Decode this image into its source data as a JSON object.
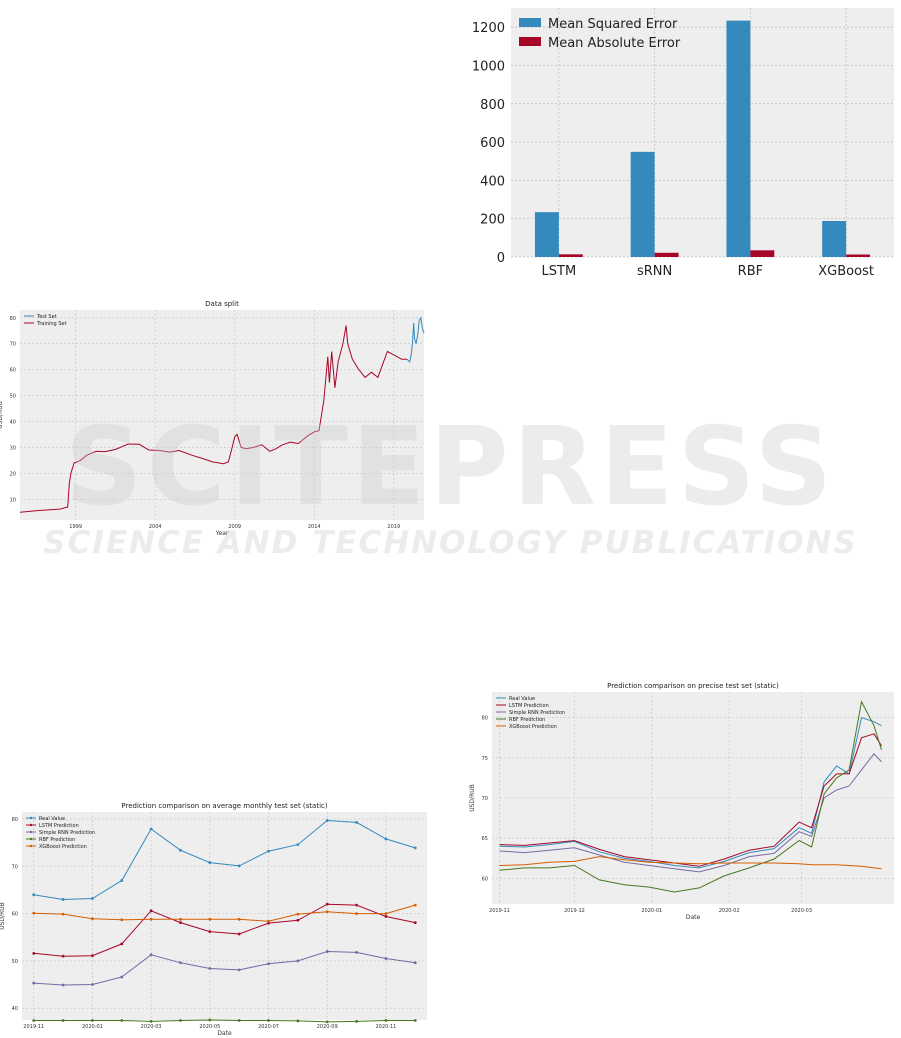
{
  "watermark": {
    "brand": "SCITEPRESS",
    "tagline": "SCIENCE AND TECHNOLOGY PUBLICATIONS"
  },
  "chart_data": [
    {
      "id": "errors",
      "type": "bar",
      "title": "",
      "xlabel": "",
      "ylabel": "",
      "categories": [
        "LSTM",
        "sRNN",
        "RBF",
        "XGBoost"
      ],
      "ylim": [
        0,
        1300
      ],
      "yticks": [
        "0",
        "200",
        "400",
        "600",
        "800",
        "1000",
        "1200"
      ],
      "grid": true,
      "legend_position": "top-left",
      "series": [
        {
          "name": "Mean Squared Error",
          "color": "#348abd",
          "values": [
            234,
            549,
            1234,
            188
          ]
        },
        {
          "name": "Mean Absolute Error",
          "color": "#a60628",
          "values": [
            14,
            22,
            35,
            13
          ]
        }
      ]
    },
    {
      "id": "split",
      "type": "line",
      "title": "Data split",
      "xlabel": "Year",
      "ylabel": "USD/RUB",
      "xlim": [
        1995.5,
        2020.9
      ],
      "ylim": [
        2,
        83
      ],
      "xticks": [
        {
          "v": 1999,
          "label": "1999"
        },
        {
          "v": 2004,
          "label": "2004"
        },
        {
          "v": 2009,
          "label": "2009"
        },
        {
          "v": 2014,
          "label": "2014"
        },
        {
          "v": 2019,
          "label": "2019"
        }
      ],
      "yticks": [
        {
          "v": 10,
          "label": "10"
        },
        {
          "v": 20,
          "label": "20"
        },
        {
          "v": 30,
          "label": "30"
        },
        {
          "v": 40,
          "label": "40"
        },
        {
          "v": 50,
          "label": "50"
        },
        {
          "v": 60,
          "label": "60"
        },
        {
          "v": 70,
          "label": "70"
        },
        {
          "v": 80,
          "label": "80"
        }
      ],
      "grid": true,
      "legend_position": "top-left",
      "series": [
        {
          "name": "Test Set",
          "color": "#348abd",
          "x": [
            2019.84,
            2020.0,
            2020.1,
            2020.17,
            2020.25,
            2020.3,
            2020.4,
            2020.5,
            2020.6,
            2020.7,
            2020.8,
            2020.9
          ],
          "y": [
            64,
            63,
            66,
            70,
            78,
            72,
            70,
            73,
            79,
            80,
            76,
            74
          ]
        },
        {
          "name": "Training Set",
          "color": "#a60628",
          "x": [
            1995.5,
            1996.5,
            1997.5,
            1998.0,
            1998.5,
            1998.6,
            1998.7,
            1998.9,
            1999.3,
            1999.7,
            2000.3,
            2000.8,
            2001.5,
            2002.3,
            2003.0,
            2003.6,
            2004.3,
            2004.9,
            2005.5,
            2006.3,
            2007.0,
            2007.6,
            2008.3,
            2008.6,
            2008.8,
            2009.0,
            2009.15,
            2009.4,
            2009.7,
            2010.2,
            2010.7,
            2011.2,
            2011.6,
            2012.0,
            2012.5,
            2013.0,
            2013.6,
            2014.0,
            2014.3,
            2014.6,
            2014.85,
            2014.95,
            2015.1,
            2015.3,
            2015.5,
            2015.8,
            2016.0,
            2016.1,
            2016.4,
            2016.8,
            2017.2,
            2017.6,
            2018.0,
            2018.3,
            2018.6,
            2018.9,
            2019.2,
            2019.5,
            2019.84
          ],
          "y": [
            5,
            5.6,
            6,
            6.2,
            7,
            16,
            20,
            24,
            25,
            27,
            28.5,
            28.3,
            29.2,
            31.3,
            31.2,
            29,
            28.8,
            28.2,
            28.8,
            27.0,
            25.7,
            24.4,
            23.7,
            24.5,
            29,
            34,
            35,
            30.0,
            29.5,
            30.0,
            31.0,
            28.5,
            29.5,
            31.0,
            32.0,
            31.5,
            34.5,
            36,
            36.5,
            48,
            65,
            55,
            67,
            53,
            63,
            70,
            77,
            70,
            64,
            60,
            57,
            59,
            57,
            62,
            67,
            66,
            65,
            64,
            64
          ]
        }
      ]
    },
    {
      "id": "monthly",
      "type": "line",
      "title": "Prediction comparison on average monthly test set (static)",
      "xlabel": "Date",
      "ylabel": "USD/RUB",
      "xlim": [
        -0.4,
        13.4
      ],
      "ylim": [
        37.5,
        81.5
      ],
      "xticks": [
        {
          "v": 0,
          "label": "2019-11"
        },
        {
          "v": 2,
          "label": "2020-01"
        },
        {
          "v": 4,
          "label": "2020-03"
        },
        {
          "v": 6,
          "label": "2020-05"
        },
        {
          "v": 8,
          "label": "2020-07"
        },
        {
          "v": 10,
          "label": "2020-09"
        },
        {
          "v": 12,
          "label": "2020-11"
        }
      ],
      "yticks": [
        {
          "v": 40,
          "label": "40"
        },
        {
          "v": 50,
          "label": "50"
        },
        {
          "v": 60,
          "label": "60"
        },
        {
          "v": 70,
          "label": "70"
        },
        {
          "v": 80,
          "label": "80"
        }
      ],
      "grid": true,
      "legend_position": "top-left",
      "x": [
        0,
        1,
        2,
        3,
        4,
        5,
        6,
        7,
        8,
        9,
        10,
        11,
        12,
        13
      ],
      "series": [
        {
          "name": "Real Value",
          "color": "#348abd",
          "values": [
            64.0,
            63.0,
            63.2,
            67.0,
            77.9,
            73.4,
            70.8,
            70.1,
            73.2,
            74.6,
            79.7,
            79.3,
            75.8,
            73.9
          ]
        },
        {
          "name": "LSTM Prediction",
          "color": "#a60628",
          "values": [
            51.6,
            51.0,
            51.1,
            53.6,
            60.6,
            58.1,
            56.2,
            55.7,
            58.0,
            58.6,
            62.0,
            61.8,
            59.4,
            58.1
          ]
        },
        {
          "name": "Simple RNN Prediction",
          "color": "#7a68a6",
          "values": [
            45.3,
            44.9,
            45.0,
            46.6,
            51.3,
            49.6,
            48.4,
            48.1,
            49.4,
            50.0,
            52.0,
            51.8,
            50.5,
            49.6
          ]
        },
        {
          "name": "RBF Prediction",
          "color": "#467821",
          "values": [
            37.4,
            37.4,
            37.4,
            37.4,
            37.2,
            37.4,
            37.5,
            37.4,
            37.4,
            37.3,
            37.1,
            37.2,
            37.4,
            37.4
          ]
        },
        {
          "name": "XGBoost Prediction",
          "color": "#d55e00",
          "values": [
            60.1,
            59.9,
            58.9,
            58.7,
            58.8,
            58.8,
            58.8,
            58.8,
            58.4,
            59.9,
            60.4,
            60.0,
            60.0,
            61.8
          ]
        }
      ]
    },
    {
      "id": "precise",
      "type": "line",
      "title": "Prediction comparison on precise test set (static)",
      "xlabel": "Date",
      "ylabel": "USD/RUB",
      "xlim": [
        -3,
        158
      ],
      "ylim": [
        56.8,
        83.2
      ],
      "xticks": [
        {
          "v": 0,
          "label": "2019-11"
        },
        {
          "v": 30,
          "label": "2019-12"
        },
        {
          "v": 61,
          "label": "2020-01"
        },
        {
          "v": 92,
          "label": "2020-02"
        },
        {
          "v": 121,
          "label": "2020-03"
        }
      ],
      "yticks": [
        {
          "v": 60,
          "label": "60"
        },
        {
          "v": 65,
          "label": "65"
        },
        {
          "v": 70,
          "label": "70"
        },
        {
          "v": 75,
          "label": "75"
        },
        {
          "v": 80,
          "label": "80"
        }
      ],
      "grid": true,
      "legend_position": "top-left",
      "x": [
        0,
        10,
        20,
        30,
        40,
        50,
        60,
        70,
        80,
        90,
        100,
        110,
        120,
        125,
        130,
        135,
        140,
        145,
        150,
        153
      ],
      "series": [
        {
          "name": "Real Value",
          "color": "#348abd",
          "values": [
            64.0,
            63.9,
            64.2,
            64.6,
            63.3,
            62.5,
            62.1,
            61.6,
            61.3,
            62.1,
            63.2,
            63.7,
            66.3,
            65.6,
            72.0,
            74.0,
            73.0,
            80.0,
            79.5,
            79.0
          ]
        },
        {
          "name": "LSTM Prediction",
          "color": "#a60628",
          "values": [
            64.2,
            64.1,
            64.4,
            64.7,
            63.6,
            62.7,
            62.3,
            61.9,
            61.5,
            62.4,
            63.5,
            64.0,
            67.0,
            66.3,
            71.5,
            73.0,
            73.0,
            77.5,
            78.0,
            76.5
          ]
        },
        {
          "name": "Simple RNN Prediction",
          "color": "#7a68a6",
          "values": [
            63.4,
            63.2,
            63.5,
            63.8,
            62.9,
            62.0,
            61.6,
            61.2,
            60.8,
            61.6,
            62.7,
            63.1,
            65.8,
            65.2,
            70.0,
            71.0,
            71.5,
            73.5,
            75.5,
            74.5
          ]
        },
        {
          "name": "RBF Prediction",
          "color": "#467821",
          "values": [
            61.0,
            61.3,
            61.3,
            61.6,
            59.8,
            59.2,
            58.9,
            58.3,
            58.8,
            60.3,
            61.3,
            62.4,
            64.7,
            63.9,
            70.5,
            72.5,
            73.5,
            82.0,
            79.0,
            76.0
          ]
        },
        {
          "name": "XGBoost Prediction",
          "color": "#d55e00",
          "values": [
            61.6,
            61.7,
            62.0,
            62.1,
            62.7,
            62.3,
            62.0,
            61.9,
            61.8,
            61.9,
            61.9,
            61.9,
            61.8,
            61.7,
            61.7,
            61.7,
            61.6,
            61.5,
            61.3,
            61.2
          ]
        }
      ]
    }
  ]
}
